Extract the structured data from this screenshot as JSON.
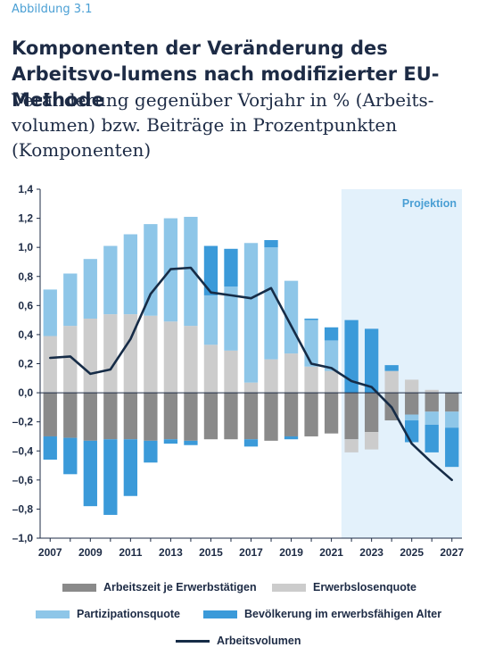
{
  "figure_label": "Abbildung 3.1",
  "colors": {
    "arbeitszeit": "#8a8a8a",
    "erwerbslosenquote": "#cccccc",
    "partizipation": "#8ec6e8",
    "bevoelkerung": "#3b9ad9",
    "arbeitsvolumen": "#162c47",
    "projection_bg": "#e3f1fb",
    "projection_text": "#4a9fd4"
  },
  "chart_data": {
    "type": "bar",
    "title": "Komponenten der Veränderung des Arbeitsvolumens nach modifizierter EU-Methode",
    "title_display": "Komponenten der Veränderung des Arbeitsvo-lumens nach modifizierter EU-Methode",
    "subtitle": "Veränderung gegenüber Vorjahr in % (Arbeits-volumen) bzw. Beiträge in Prozentpunkten (Komponenten)",
    "stacked": true,
    "x": [
      2007,
      2008,
      2009,
      2010,
      2011,
      2012,
      2013,
      2014,
      2015,
      2016,
      2017,
      2018,
      2019,
      2020,
      2021,
      2022,
      2023,
      2024,
      2025,
      2026,
      2027
    ],
    "x_tick_labels": [
      "2007",
      "2009",
      "2011",
      "2013",
      "2015",
      "2017",
      "2019",
      "2021",
      "2023",
      "2025",
      "2027"
    ],
    "x_tick_values": [
      2007,
      2009,
      2011,
      2013,
      2015,
      2017,
      2019,
      2021,
      2023,
      2025,
      2027
    ],
    "ylim": [
      -1.0,
      1.4
    ],
    "y_ticks": [
      -1.0,
      -0.8,
      -0.6,
      -0.4,
      -0.2,
      0.0,
      0.2,
      0.4,
      0.6,
      0.8,
      1.0,
      1.2,
      1.4
    ],
    "y_tick_labels": [
      "–1,0",
      "–0,8",
      "–0,6",
      "–0,4",
      "–0,2",
      "0,0",
      "0,2",
      "0,4",
      "0,6",
      "0,8",
      "1,0",
      "1,2",
      "1,4"
    ],
    "projection": {
      "label": "Projektion",
      "from": 2021.5,
      "to": 2027.5
    },
    "grid": false,
    "legend_position": "bottom",
    "series": [
      {
        "key": "arbeitszeit",
        "name": "Arbeitszeit je Erwerbstätigen",
        "values": [
          -0.3,
          -0.31,
          -0.33,
          -0.32,
          -0.32,
          -0.33,
          -0.32,
          -0.33,
          -0.32,
          -0.32,
          -0.32,
          -0.33,
          -0.3,
          -0.3,
          -0.28,
          -0.32,
          -0.27,
          -0.19,
          -0.15,
          -0.13,
          -0.13
        ]
      },
      {
        "key": "erwerbslosenquote",
        "name": "Erwerbslosenquote",
        "values": [
          0.39,
          0.46,
          0.51,
          0.54,
          0.54,
          0.53,
          0.49,
          0.46,
          0.33,
          0.29,
          0.07,
          0.23,
          0.27,
          0.18,
          0.15,
          -0.09,
          -0.12,
          0.15,
          0.09,
          0.02,
          0.0
        ]
      },
      {
        "key": "partizipation",
        "name": "Partizipationsquote",
        "values": [
          0.32,
          0.36,
          0.41,
          0.47,
          0.55,
          0.63,
          0.71,
          0.75,
          0.34,
          0.44,
          0.96,
          0.77,
          0.5,
          0.32,
          0.21,
          0.0,
          0.0,
          0.0,
          -0.04,
          -0.09,
          -0.11
        ]
      },
      {
        "key": "bevoelkerung",
        "name": "Bevölkerung im erwerbsfähigen Alter",
        "values": [
          -0.16,
          -0.25,
          -0.45,
          -0.52,
          -0.39,
          -0.15,
          -0.03,
          -0.03,
          0.34,
          0.26,
          -0.05,
          0.05,
          -0.02,
          0.01,
          0.09,
          0.5,
          0.44,
          0.04,
          -0.15,
          -0.19,
          -0.27
        ]
      },
      {
        "key": "arbeitsvolumen",
        "name": "Arbeitsvolumen",
        "type": "line",
        "values": [
          0.24,
          0.25,
          0.13,
          0.16,
          0.37,
          0.68,
          0.85,
          0.86,
          0.69,
          0.67,
          0.65,
          0.72,
          0.46,
          0.2,
          0.17,
          0.08,
          0.04,
          -0.1,
          -0.35,
          -0.48,
          -0.6
        ]
      }
    ]
  }
}
